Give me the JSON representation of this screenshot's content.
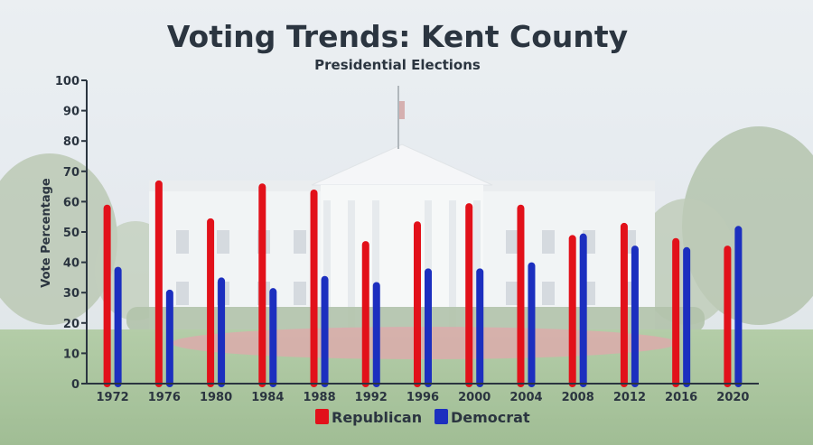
{
  "chart_data": {
    "type": "bar",
    "title": "Voting Trends: Kent County",
    "subtitle": "Presidential Elections",
    "xlabel": "",
    "ylabel": "Vote Percentage",
    "ylim": [
      0,
      100
    ],
    "yticks": [
      "0",
      "10",
      "20",
      "30",
      "40",
      "50",
      "60",
      "70",
      "80",
      "90",
      "100"
    ],
    "categories": [
      "1972",
      "1976",
      "1980",
      "1984",
      "1988",
      "1992",
      "1996",
      "2000",
      "2004",
      "2008",
      "2012",
      "2016",
      "2020"
    ],
    "series": [
      {
        "name": "Republican",
        "color": "#e2111a",
        "values": [
          59,
          67,
          54.5,
          66,
          64,
          47,
          53.5,
          59.5,
          59,
          49,
          53,
          48,
          45.5
        ]
      },
      {
        "name": "Democrat",
        "color": "#1c2fbf",
        "values": [
          38.5,
          31,
          35,
          31.5,
          35.5,
          33.5,
          38,
          38,
          40,
          49.5,
          45.5,
          45,
          52
        ]
      }
    ],
    "legend_position": "bottom-center"
  },
  "colors": {
    "axis": "#2b3540",
    "text": "#2b3540"
  }
}
